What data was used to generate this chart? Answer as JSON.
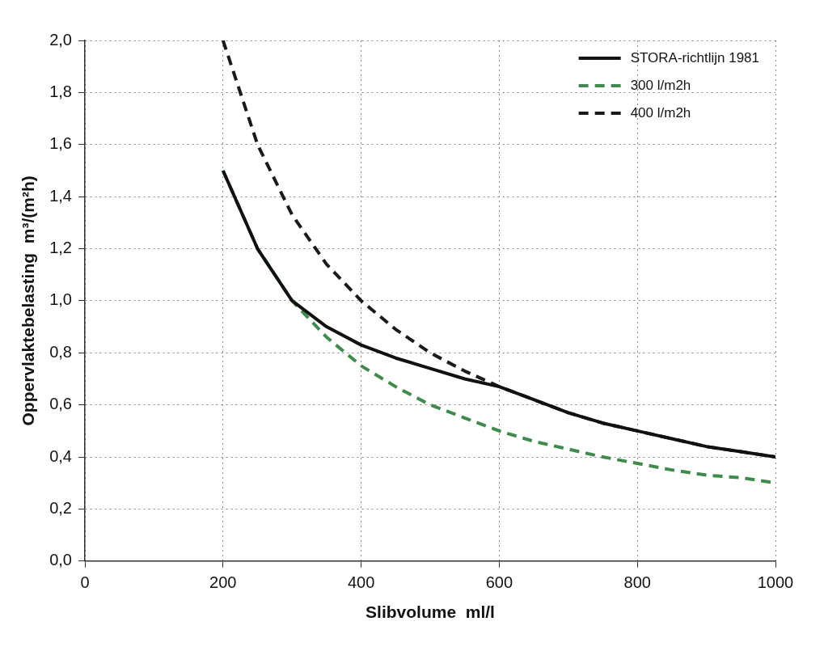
{
  "chart_data": {
    "type": "line",
    "xlabel": "Slibvolume  ml/l",
    "ylabel": "Oppervlaktebelasting  m³/(m²h)",
    "x": [
      200,
      250,
      300,
      350,
      400,
      450,
      500,
      550,
      600,
      650,
      700,
      750,
      800,
      850,
      900,
      950,
      1000
    ],
    "series": [
      {
        "name": "STORA-richtlijn 1981",
        "color": "#111111",
        "line_style": "solid",
        "values": [
          1.5,
          1.2,
          1.0,
          0.9,
          0.83,
          0.78,
          0.74,
          0.7,
          0.67,
          0.62,
          0.57,
          0.53,
          0.5,
          0.47,
          0.44,
          0.42,
          0.4
        ]
      },
      {
        "name": "300 l/m2h",
        "color": "#3f8a4c",
        "line_style": "dashed",
        "values": [
          1.5,
          1.2,
          1.0,
          0.86,
          0.75,
          0.67,
          0.6,
          0.55,
          0.5,
          0.46,
          0.43,
          0.4,
          0.375,
          0.35,
          0.33,
          0.32,
          0.3
        ]
      },
      {
        "name": "400 l/m2h",
        "color": "#1a1a1a",
        "line_style": "dashed",
        "values": [
          2.0,
          1.6,
          1.33,
          1.14,
          1.0,
          0.89,
          0.8,
          0.73,
          0.67,
          0.62,
          0.57,
          0.53,
          0.5,
          0.47,
          0.44,
          0.42,
          0.4
        ]
      }
    ],
    "xlim": [
      0,
      1000
    ],
    "xticks": [
      0,
      200,
      400,
      600,
      800,
      1000
    ],
    "ylim": [
      0,
      2
    ],
    "yticks": [
      {
        "value": 0,
        "label": "0,0"
      },
      {
        "value": 0.2,
        "label": "0,2"
      },
      {
        "value": 0.4,
        "label": "0,4"
      },
      {
        "value": 0.6,
        "label": "0,6"
      },
      {
        "value": 0.8,
        "label": "0,8"
      },
      {
        "value": 1,
        "label": "1,0"
      },
      {
        "value": 1.2,
        "label": "1,2"
      },
      {
        "value": 1.4,
        "label": "1,4"
      },
      {
        "value": 1.6,
        "label": "1,6"
      },
      {
        "value": 1.8,
        "label": "1,8"
      },
      {
        "value": 2,
        "label": "2,0"
      }
    ],
    "grid": true,
    "legend": "top right",
    "marker": "none"
  }
}
